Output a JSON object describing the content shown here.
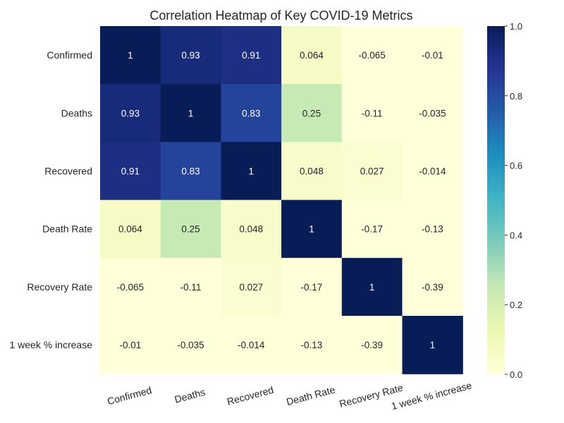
{
  "chart_data": {
    "type": "heatmap",
    "title": "Correlation Heatmap of Key COVID-19 Metrics",
    "row_labels": [
      "Confirmed",
      "Deaths",
      "Recovered",
      "Death Rate",
      "Recovery Rate",
      "1 week % increase"
    ],
    "col_labels": [
      "Confirmed",
      "Deaths",
      "Recovered",
      "Death Rate",
      "Recovery Rate",
      "1 week % increase"
    ],
    "values": [
      [
        1,
        0.93,
        0.91,
        0.064,
        -0.065,
        -0.01
      ],
      [
        0.93,
        1,
        0.83,
        0.25,
        -0.11,
        -0.035
      ],
      [
        0.91,
        0.83,
        1,
        0.048,
        0.027,
        -0.014
      ],
      [
        0.064,
        0.25,
        0.048,
        1,
        -0.17,
        -0.13
      ],
      [
        -0.065,
        -0.11,
        0.027,
        -0.17,
        1,
        -0.39
      ],
      [
        -0.01,
        -0.035,
        -0.014,
        -0.13,
        -0.39,
        1
      ]
    ],
    "value_labels": [
      [
        "1",
        "0.93",
        "0.91",
        "0.064",
        "-0.065",
        "-0.01"
      ],
      [
        "0.93",
        "1",
        "0.83",
        "0.25",
        "-0.11",
        "-0.035"
      ],
      [
        "0.91",
        "0.83",
        "1",
        "0.048",
        "0.027",
        "-0.014"
      ],
      [
        "0.064",
        "0.25",
        "0.048",
        "1",
        "-0.17",
        "-0.13"
      ],
      [
        "-0.065",
        "-0.11",
        "0.027",
        "-0.17",
        "1",
        "-0.39"
      ],
      [
        "-0.01",
        "-0.035",
        "-0.014",
        "-0.13",
        "-0.39",
        "1"
      ]
    ],
    "colormap": "YlGnBu",
    "color_range": [
      0,
      1
    ],
    "colorbar": {
      "ticks": [
        0,
        0.2,
        0.4,
        0.6,
        0.8,
        1
      ],
      "tick_labels": [
        "0.0",
        "0.2",
        "0.4",
        "0.6",
        "0.8",
        "1.0"
      ]
    },
    "colormap_stops": [
      "#ffffd9",
      "#edf8b1",
      "#c7e9b4",
      "#7fcdbb",
      "#41b6c4",
      "#1d91c0",
      "#225ea8",
      "#253494",
      "#081d58"
    ]
  }
}
